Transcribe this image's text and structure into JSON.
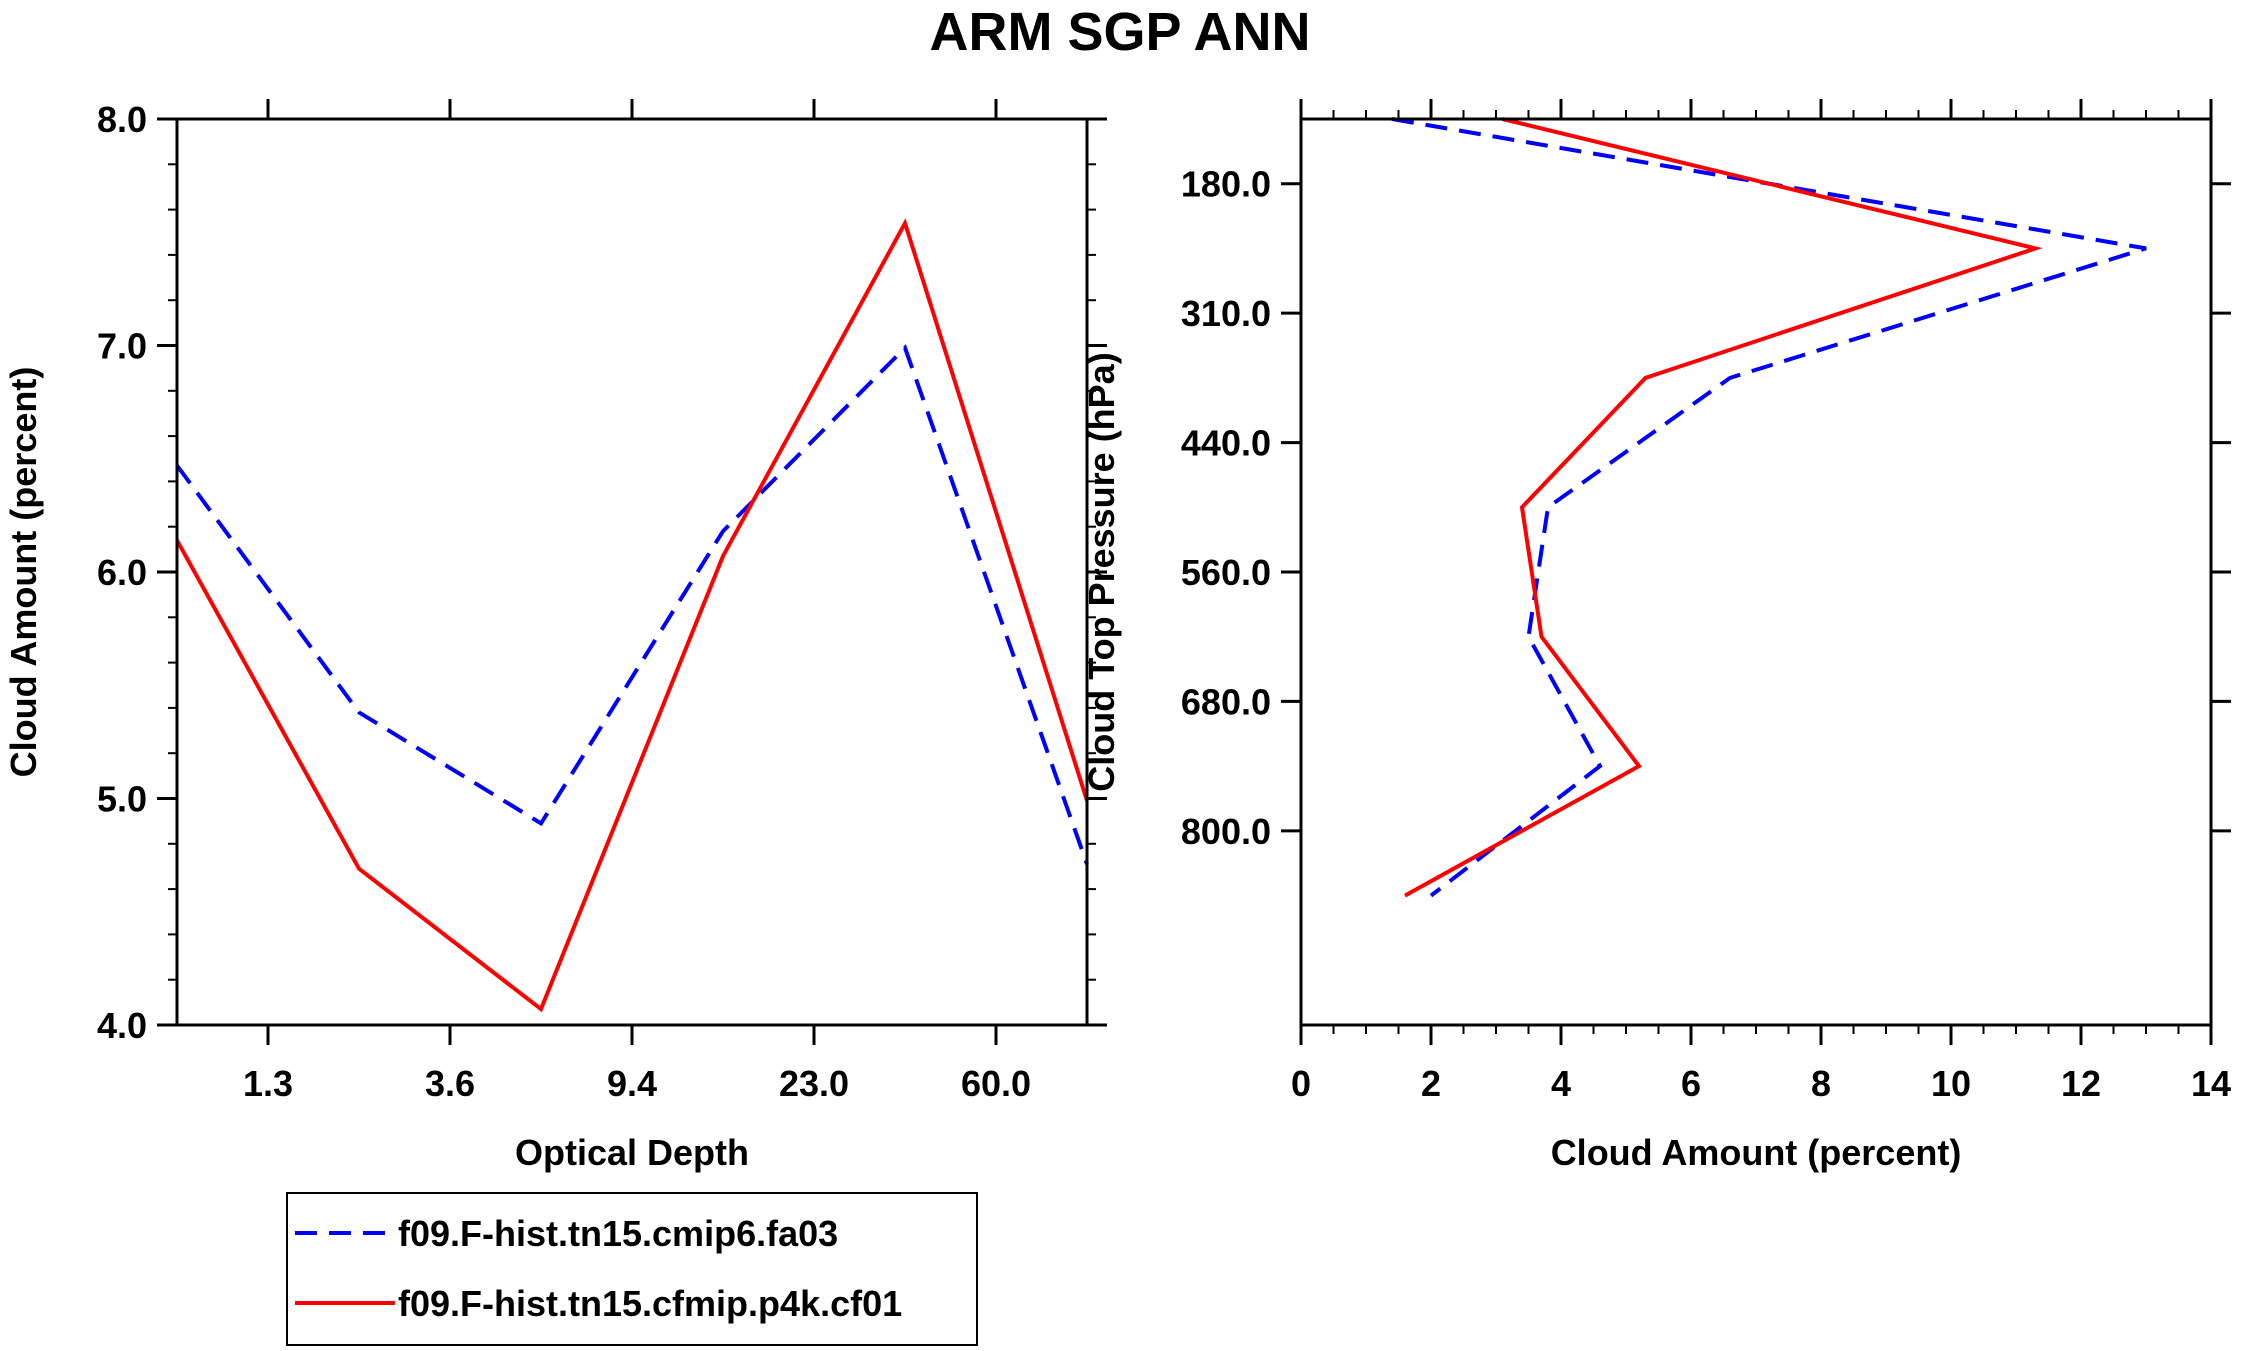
{
  "title": "ARM SGP ANN",
  "colors": {
    "series1": "#0000ff",
    "series2": "#ff0000",
    "axis": "#000000",
    "background": "#ffffff"
  },
  "legend": {
    "entries": [
      {
        "label": "f09.F-hist.tn15.cmip6.fa03",
        "color": "#0000ff",
        "style": "dashed"
      },
      {
        "label": "f09.F-hist.tn15.cfmip.p4k.cf01",
        "color": "#ff0000",
        "style": "solid"
      }
    ]
  },
  "chart_data": [
    {
      "type": "line",
      "xlabel": "Optical Depth",
      "ylabel": "Cloud Amount (percent)",
      "xlim": [
        0,
        5
      ],
      "ylim": [
        4.0,
        8.0
      ],
      "x_ticks": [
        0.5,
        1.5,
        2.5,
        3.5,
        4.5
      ],
      "x_tick_labels": [
        "1.3",
        "3.6",
        "9.4",
        "23.0",
        "60.0"
      ],
      "x_minor": [
        0.5,
        1.5,
        2.5,
        3.5,
        4.5
      ],
      "y_ticks": [
        4.0,
        5.0,
        6.0,
        7.0,
        8.0
      ],
      "y_tick_labels": [
        "4.0",
        "5.0",
        "6.0",
        "7.0",
        "8.0"
      ],
      "y_minor_step": 0.2,
      "x": [
        0.0,
        1.0,
        2.0,
        3.0,
        4.0,
        5.0
      ],
      "series": [
        {
          "name": "f09.F-hist.tn15.cmip6.fa03",
          "values": [
            6.47,
            5.38,
            4.89,
            6.18,
            6.99,
            4.71
          ]
        },
        {
          "name": "f09.F-hist.tn15.cfmip.p4k.cf01",
          "values": [
            6.14,
            4.69,
            4.07,
            6.07,
            7.54,
            4.99
          ]
        }
      ]
    },
    {
      "type": "line",
      "xlabel": "Cloud Amount (percent)",
      "ylabel": "Cloud Top Pressure (hPa)",
      "xlim": [
        0,
        14
      ],
      "ylim_scaled": [
        0,
        7
      ],
      "x_ticks": [
        0,
        2,
        4,
        6,
        8,
        10,
        12,
        14
      ],
      "x_tick_labels": [
        "0",
        "2",
        "4",
        "6",
        "8",
        "10",
        "12",
        "14"
      ],
      "x_minor_step": 0.5,
      "y_ticks": [
        0.5,
        1.5,
        2.5,
        3.5,
        4.5,
        5.5
      ],
      "y_tick_labels": [
        "180.0",
        "310.0",
        "440.0",
        "560.0",
        "680.0",
        "800.0"
      ],
      "y_levels": [
        0,
        1,
        2,
        3,
        4,
        5,
        6
      ],
      "series": [
        {
          "name": "f09.F-hist.tn15.cmip6.fa03",
          "values": [
            1.4,
            13.0,
            6.6,
            3.8,
            3.5,
            4.6,
            2.0
          ]
        },
        {
          "name": "f09.F-hist.tn15.cfmip.p4k.cf01",
          "values": [
            3.1,
            11.3,
            5.3,
            3.4,
            3.7,
            5.2,
            1.6
          ]
        }
      ]
    }
  ]
}
